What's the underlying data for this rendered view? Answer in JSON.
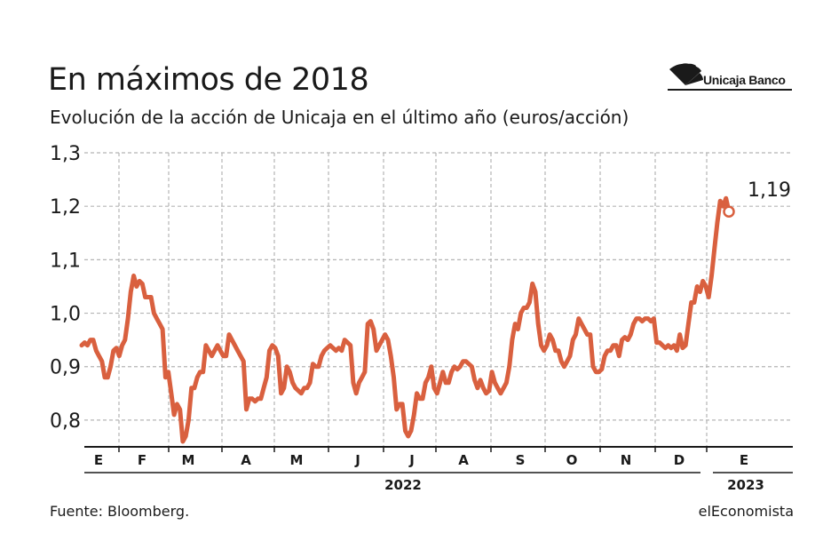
{
  "header": {
    "title": "En máximos de 2018",
    "subtitle": "Evolución de la acción de Unicaja en el último año (euros/acción)"
  },
  "logo": {
    "text": "Unicaja Banco"
  },
  "footer": {
    "source": "Fuente: Bloomberg.",
    "credit": "elEconomista"
  },
  "colors": {
    "line": "#d9603f",
    "grid": "#b5b5b5",
    "text": "#1a1a1a"
  },
  "chart_data": {
    "type": "line",
    "title": "En máximos de 2018",
    "subtitle": "Evolución de la acción de Unicaja en el último año (euros/acción)",
    "xlabel": "",
    "ylabel": "",
    "ylim": [
      0.75,
      1.3
    ],
    "y_ticks": [
      "0,8",
      "0,9",
      "1,0",
      "1,1",
      "1,2",
      "1,3"
    ],
    "y_tick_values": [
      0.8,
      0.9,
      1.0,
      1.1,
      1.2,
      1.3
    ],
    "x_month_labels": [
      "E",
      "F",
      "M",
      "A",
      "M",
      "J",
      "J",
      "A",
      "S",
      "O",
      "N",
      "D",
      "E"
    ],
    "x_year_labels": [
      "2022",
      "2023"
    ],
    "grid": true,
    "last_value_label": "1,19",
    "series": [
      {
        "values": [
          0.94,
          0.945,
          0.94,
          0.95,
          0.95,
          0.93,
          0.92,
          0.91,
          0.88,
          0.88,
          0.9,
          0.93,
          0.935,
          0.92,
          0.94,
          0.95,
          0.99,
          1.04,
          1.07,
          1.05,
          1.06,
          1.055,
          1.03,
          1.03,
          1.03,
          1.0,
          0.99,
          0.98,
          0.97,
          0.88,
          0.89,
          0.85,
          0.81,
          0.83,
          0.82,
          0.76,
          0.77,
          0.8,
          0.86,
          0.86,
          0.88,
          0.89,
          0.89,
          0.94,
          0.93,
          0.92,
          0.93,
          0.94,
          0.93,
          0.92,
          0.92,
          0.96,
          0.95,
          0.94,
          0.93,
          0.92,
          0.91,
          0.82,
          0.84,
          0.84,
          0.835,
          0.84,
          0.84,
          0.86,
          0.88,
          0.93,
          0.94,
          0.935,
          0.92,
          0.85,
          0.86,
          0.9,
          0.89,
          0.87,
          0.86,
          0.855,
          0.85,
          0.86,
          0.86,
          0.87,
          0.905,
          0.9,
          0.9,
          0.92,
          0.93,
          0.935,
          0.94,
          0.935,
          0.93,
          0.935,
          0.93,
          0.95,
          0.945,
          0.94,
          0.87,
          0.85,
          0.87,
          0.88,
          0.89,
          0.98,
          0.985,
          0.97,
          0.93,
          0.94,
          0.95,
          0.96,
          0.95,
          0.92,
          0.88,
          0.82,
          0.83,
          0.83,
          0.78,
          0.77,
          0.78,
          0.81,
          0.85,
          0.84,
          0.84,
          0.87,
          0.88,
          0.9,
          0.86,
          0.85,
          0.87,
          0.89,
          0.87,
          0.87,
          0.89,
          0.9,
          0.895,
          0.9,
          0.91,
          0.91,
          0.905,
          0.9,
          0.875,
          0.86,
          0.875,
          0.86,
          0.85,
          0.855,
          0.89,
          0.87,
          0.86,
          0.85,
          0.86,
          0.87,
          0.9,
          0.95,
          0.98,
          0.97,
          1.0,
          1.01,
          1.01,
          1.02,
          1.055,
          1.04,
          0.98,
          0.94,
          0.93,
          0.94,
          0.96,
          0.95,
          0.93,
          0.93,
          0.91,
          0.9,
          0.91,
          0.92,
          0.95,
          0.96,
          0.99,
          0.98,
          0.97,
          0.96,
          0.96,
          0.9,
          0.89,
          0.89,
          0.895,
          0.92,
          0.93,
          0.93,
          0.94,
          0.94,
          0.92,
          0.95,
          0.955,
          0.95,
          0.96,
          0.98,
          0.99,
          0.99,
          0.985,
          0.99,
          0.99,
          0.985,
          0.99,
          0.945,
          0.945,
          0.94,
          0.935,
          0.94,
          0.935,
          0.94,
          0.93,
          0.96,
          0.935,
          0.94,
          0.98,
          1.02,
          1.02,
          1.05,
          1.04,
          1.06,
          1.05,
          1.03,
          1.07,
          1.12,
          1.17,
          1.21,
          1.2,
          1.215,
          1.19
        ]
      }
    ]
  }
}
